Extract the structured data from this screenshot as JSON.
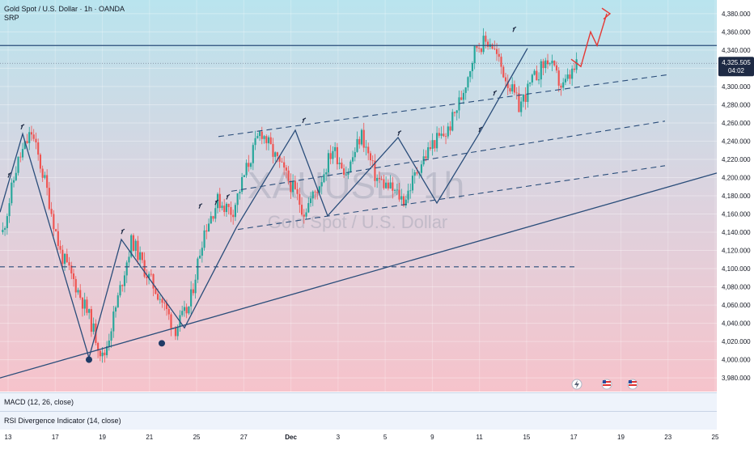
{
  "header": {
    "title": "Gold Spot / U.S. Dollar · 1h · OANDA",
    "indicator": "SRP"
  },
  "watermark": {
    "symbol": "XAUUSD, 1h",
    "name": "Gold Spot / U.S. Dollar"
  },
  "price_badge": {
    "price": "4,325.505",
    "countdown": "04:02"
  },
  "panes": {
    "macd": "MACD (12, 26, close)",
    "rsi": "RSI Divergence Indicator (14, close)"
  },
  "colors": {
    "bg_top": "#b9e4ee",
    "bg_bottom": "#f6c3cb",
    "up": "#26a69a",
    "down": "#ef5350",
    "line": "#2a4d7a",
    "projection": "#e53935"
  },
  "chart_data": {
    "type": "line",
    "x_ticks": [
      "13",
      "17",
      "19",
      "21",
      "25",
      "27",
      "Dec",
      "3",
      "5",
      "9",
      "11",
      "15",
      "17",
      "19",
      "23",
      "25"
    ],
    "y_ticks": [
      3980,
      4000,
      4020,
      4040,
      4060,
      4080,
      4100,
      4120,
      4140,
      4160,
      4180,
      4200,
      4220,
      4240,
      4260,
      4280,
      4300,
      4320,
      4340,
      4360,
      4380
    ],
    "ylim": [
      3965,
      4395
    ],
    "series": [
      {
        "values": [
          4140,
          4215,
          4250,
          4192,
          4118,
          4085,
          4048,
          4000,
          4065,
          4132,
          4095,
          4068,
          4033,
          4058,
          4140,
          4175,
          4162,
          4210,
          4252,
          4222,
          4195,
          4163,
          4190,
          4232,
          4205,
          4248,
          4200,
          4188,
          4175,
          4212,
          4238,
          4250,
          4290,
          4345,
          4350,
          4312,
          4278,
          4308,
          4330,
          4298,
          4322
        ]
      }
    ],
    "horizontal_lines": [
      {
        "y": 4345,
        "style": "solid"
      },
      {
        "y": 4102,
        "style": "dashed"
      }
    ],
    "current_price": 4325.505,
    "projection": [
      4330,
      4322,
      4360,
      4345,
      4380
    ]
  }
}
